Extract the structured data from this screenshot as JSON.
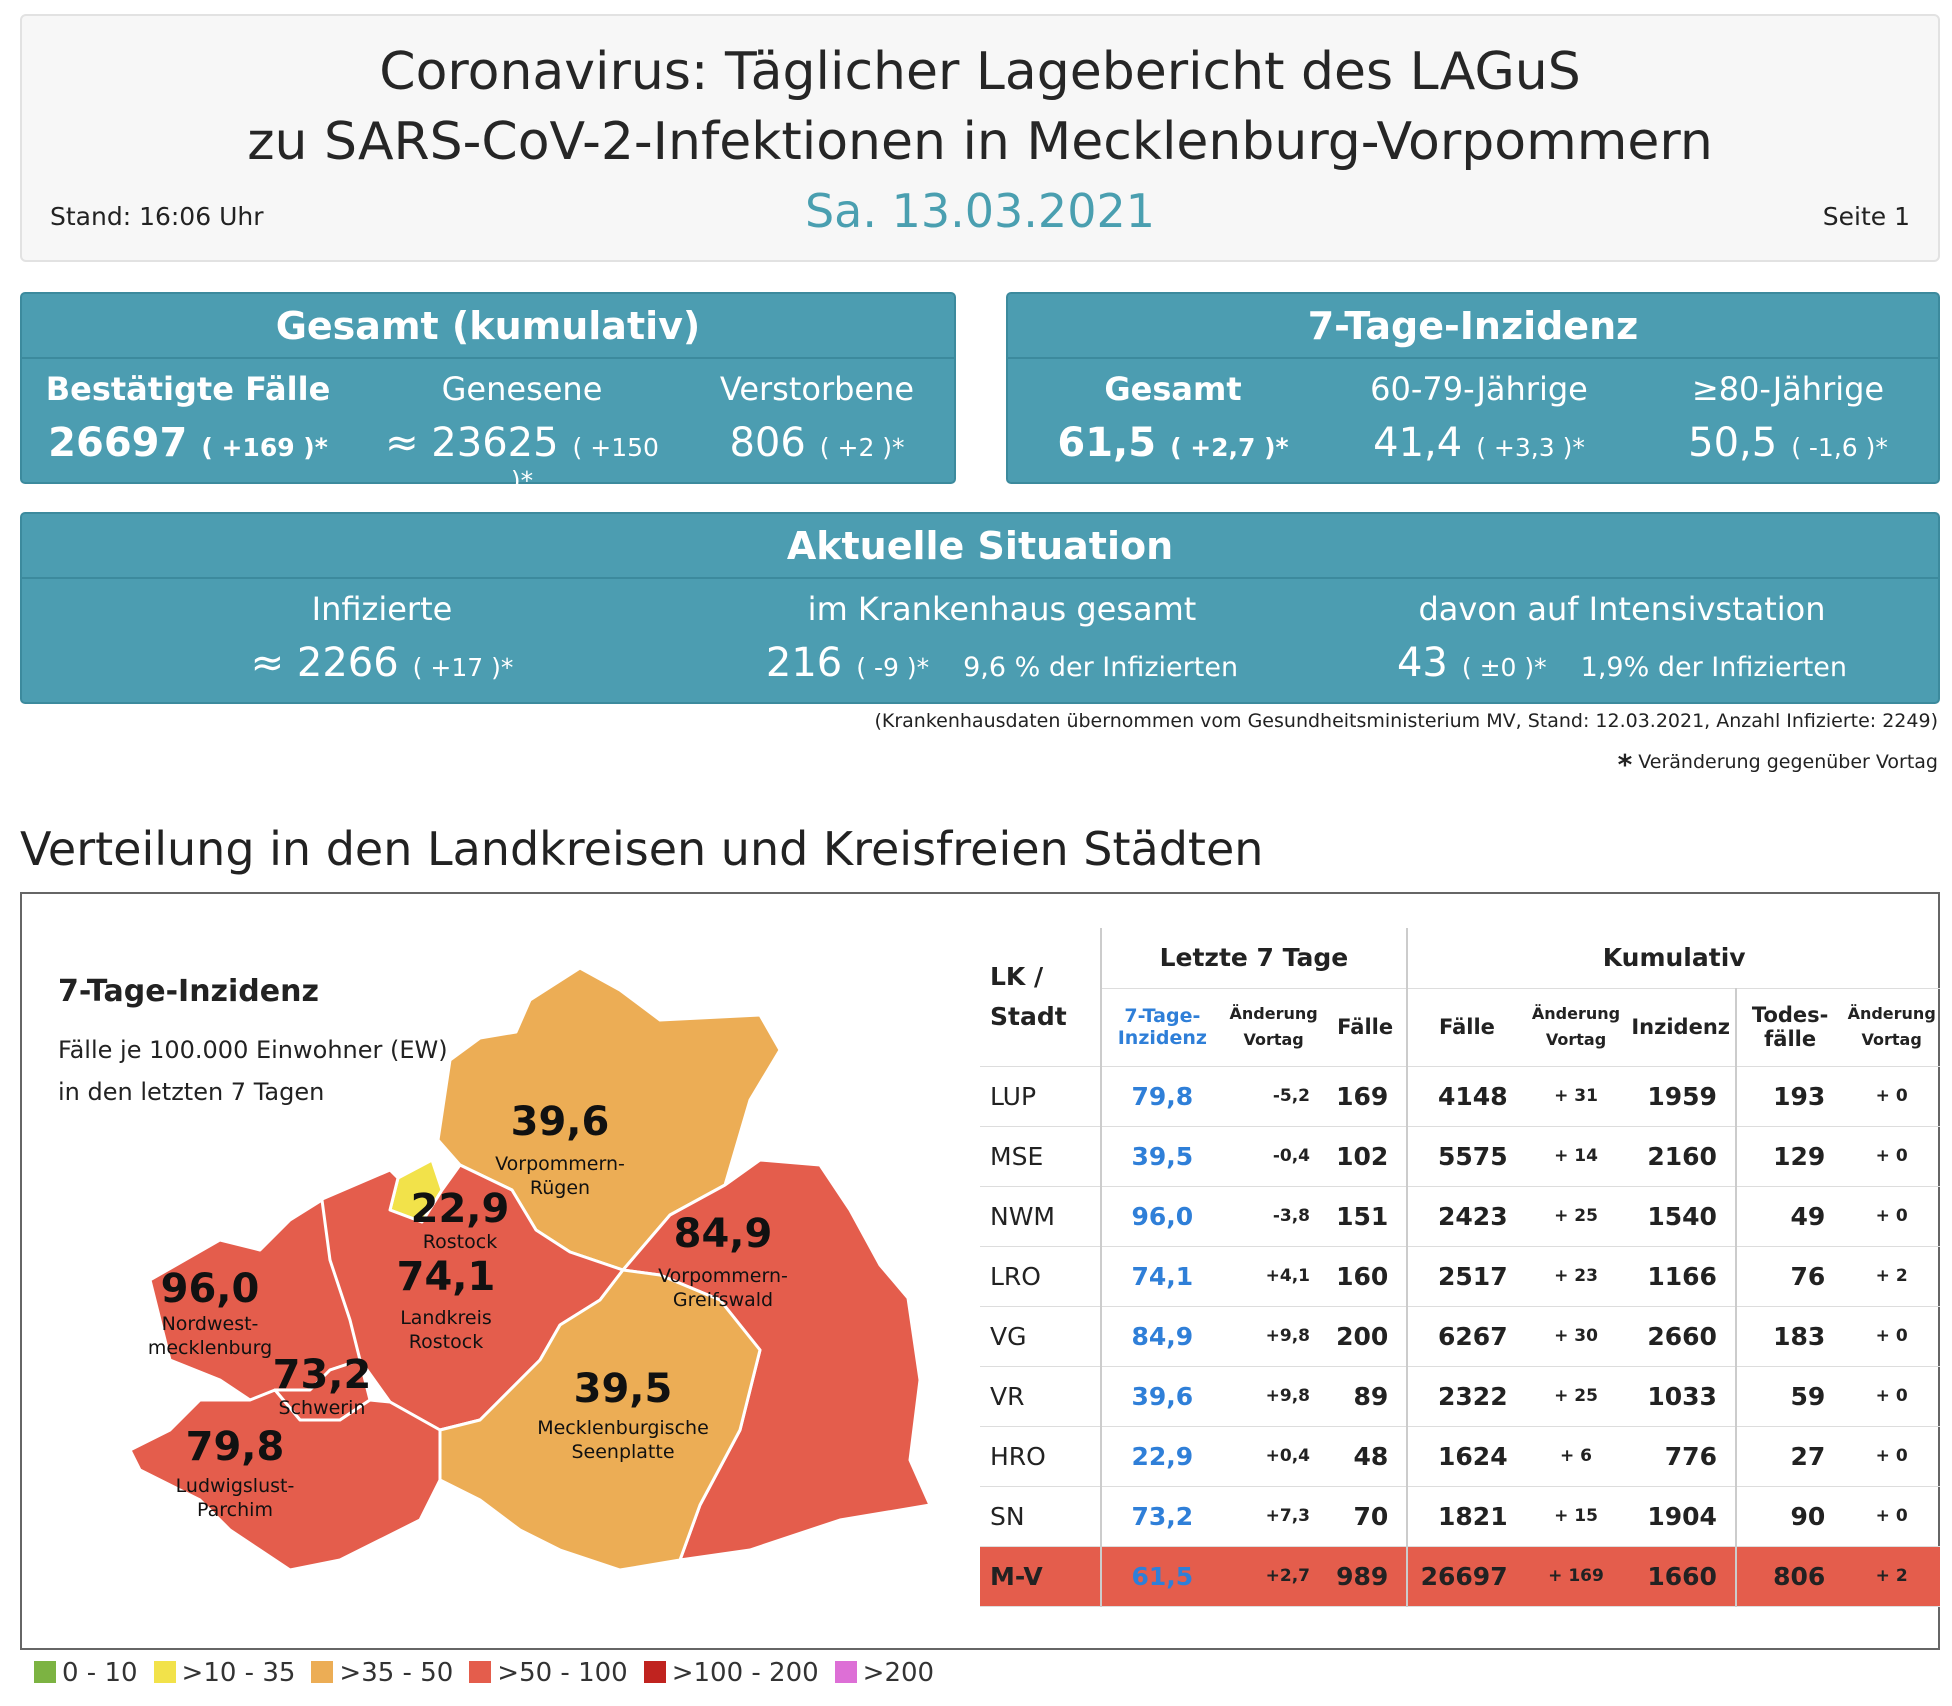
{
  "header": {
    "title_line1": "Coronavirus: Täglicher Lagebericht des LAGuS",
    "title_line2": "zu SARS-CoV-2-Infektionen in Mecklenburg-Vorpommern",
    "date": "Sa. 13.03.2021",
    "stand": "Stand: 16:06 Uhr",
    "page": "Seite 1"
  },
  "gesamt": {
    "title": "Gesamt (kumulativ)",
    "cols": [
      {
        "label": "Bestätigte Fälle",
        "value": "26697",
        "change": "( +169 )*"
      },
      {
        "label": "Genesene",
        "value": "≈ 23625",
        "change": "( +150 )*"
      },
      {
        "label": "Verstorbene",
        "value": "806",
        "change": "( +2 )*"
      }
    ]
  },
  "inzidenz": {
    "title": "7-Tage-Inzidenz",
    "cols": [
      {
        "label": "Gesamt",
        "value": "61,5",
        "change": "( +2,7 )*"
      },
      {
        "label": "60-79-Jährige",
        "value": "41,4",
        "change": "( +3,3 )*"
      },
      {
        "label": "≥80-Jährige",
        "value": "50,5",
        "change": "( -1,6 )*"
      }
    ]
  },
  "aktuell": {
    "title": "Aktuelle Situation",
    "cols": [
      {
        "label": "Infizierte",
        "value": "≈ 2266",
        "change": "( +17 )*",
        "extra": ""
      },
      {
        "label": "im Krankenhaus gesamt",
        "value": "216",
        "change": "( -9 )*",
        "extra": "9,6 % der Infizierten"
      },
      {
        "label": "davon auf Intensivstation",
        "value": "43",
        "change": "( ±0 )*",
        "extra": "1,9% der Infizierten"
      }
    ]
  },
  "notes": {
    "hospital_source": "(Krankenhausdaten übernommen vom Gesundheitsministerium MV, Stand: 12.03.2021, Anzahl Infizierte: 2249)",
    "change_note": "Veränderung gegenüber Vortag",
    "change_star": "*"
  },
  "section_title": "Verteilung in den Landkreisen und Kreisfreien Städten",
  "map": {
    "title": "7-Tage-Inzidenz",
    "subtitle_line1": "Fälle je 100.000 Einwohner (EW)",
    "subtitle_line2": "in den letzten 7 Tagen",
    "regions": [
      {
        "value": "39,6",
        "name1": "Vorpommern-",
        "name2": "Rügen"
      },
      {
        "value": "22,9",
        "name1": "Rostock",
        "name2": ""
      },
      {
        "value": "84,9",
        "name1": "Vorpommern-",
        "name2": "Greifswald"
      },
      {
        "value": "96,0",
        "name1": "Nordwest-",
        "name2": "mecklenburg"
      },
      {
        "value": "74,1",
        "name1": "Landkreis",
        "name2": "Rostock"
      },
      {
        "value": "73,2",
        "name1": "Schwerin",
        "name2": ""
      },
      {
        "value": "39,5",
        "name1": "Mecklenburgische",
        "name2": "Seenplatte"
      },
      {
        "value": "79,8",
        "name1": "Ludwigslust-",
        "name2": "Parchim"
      }
    ]
  },
  "table": {
    "group_last7": "Letzte 7 Tage",
    "group_cum": "Kumulativ",
    "h_lk1": "LK /",
    "h_lk2": "Stadt",
    "h_inc1": "7-Tage-",
    "h_inc2": "Inzidenz",
    "h_chg1": "Änderung",
    "h_chg2": "Vortag",
    "h_faelle": "Fälle",
    "h_cfaelle": "Fälle",
    "h_cchg1": "Änderung",
    "h_cchg2": "Vortag",
    "h_cinc": "Inzidenz",
    "h_tod1": "Todes-",
    "h_tod2": "fälle",
    "h_tchg1": "Änderung",
    "h_tchg2": "Vortag",
    "rows": [
      {
        "code": "LUP",
        "inc": "79,8",
        "chg": "-5,2",
        "faelle": "169",
        "cf": "4148",
        "cchg": "+ 31",
        "cinc": "1959",
        "tod": "193",
        "tchg": "+ 0"
      },
      {
        "code": "MSE",
        "inc": "39,5",
        "chg": "-0,4",
        "faelle": "102",
        "cf": "5575",
        "cchg": "+ 14",
        "cinc": "2160",
        "tod": "129",
        "tchg": "+ 0"
      },
      {
        "code": "NWM",
        "inc": "96,0",
        "chg": "-3,8",
        "faelle": "151",
        "cf": "2423",
        "cchg": "+ 25",
        "cinc": "1540",
        "tod": "49",
        "tchg": "+ 0"
      },
      {
        "code": "LRO",
        "inc": "74,1",
        "chg": "+4,1",
        "faelle": "160",
        "cf": "2517",
        "cchg": "+ 23",
        "cinc": "1166",
        "tod": "76",
        "tchg": "+ 2"
      },
      {
        "code": "VG",
        "inc": "84,9",
        "chg": "+9,8",
        "faelle": "200",
        "cf": "6267",
        "cchg": "+ 30",
        "cinc": "2660",
        "tod": "183",
        "tchg": "+ 0"
      },
      {
        "code": "VR",
        "inc": "39,6",
        "chg": "+9,8",
        "faelle": "89",
        "cf": "2322",
        "cchg": "+ 25",
        "cinc": "1033",
        "tod": "59",
        "tchg": "+ 0"
      },
      {
        "code": "HRO",
        "inc": "22,9",
        "chg": "+0,4",
        "faelle": "48",
        "cf": "1624",
        "cchg": "+ 6",
        "cinc": "776",
        "tod": "27",
        "tchg": "+ 0"
      },
      {
        "code": "SN",
        "inc": "73,2",
        "chg": "+7,3",
        "faelle": "70",
        "cf": "1821",
        "cchg": "+ 15",
        "cinc": "1904",
        "tod": "90",
        "tchg": "+ 0"
      }
    ],
    "total": {
      "code": "M-V",
      "inc": "61,5",
      "chg": "+2,7",
      "faelle": "989",
      "cf": "26697",
      "cchg": "+ 169",
      "cinc": "1660",
      "tod": "806",
      "tchg": "+ 2"
    }
  },
  "legend": [
    {
      "label": "0 - 10",
      "color": "#7cb342"
    },
    {
      "label": ">10 - 35",
      "color": "#f2e24a"
    },
    {
      "label": ">35 - 50",
      "color": "#ecad55"
    },
    {
      "label": ">50 - 100",
      "color": "#e45d4c"
    },
    {
      "label": ">100 - 200",
      "color": "#c0231f"
    },
    {
      "label": ">200",
      "color": "#dd6fd6"
    }
  ]
}
